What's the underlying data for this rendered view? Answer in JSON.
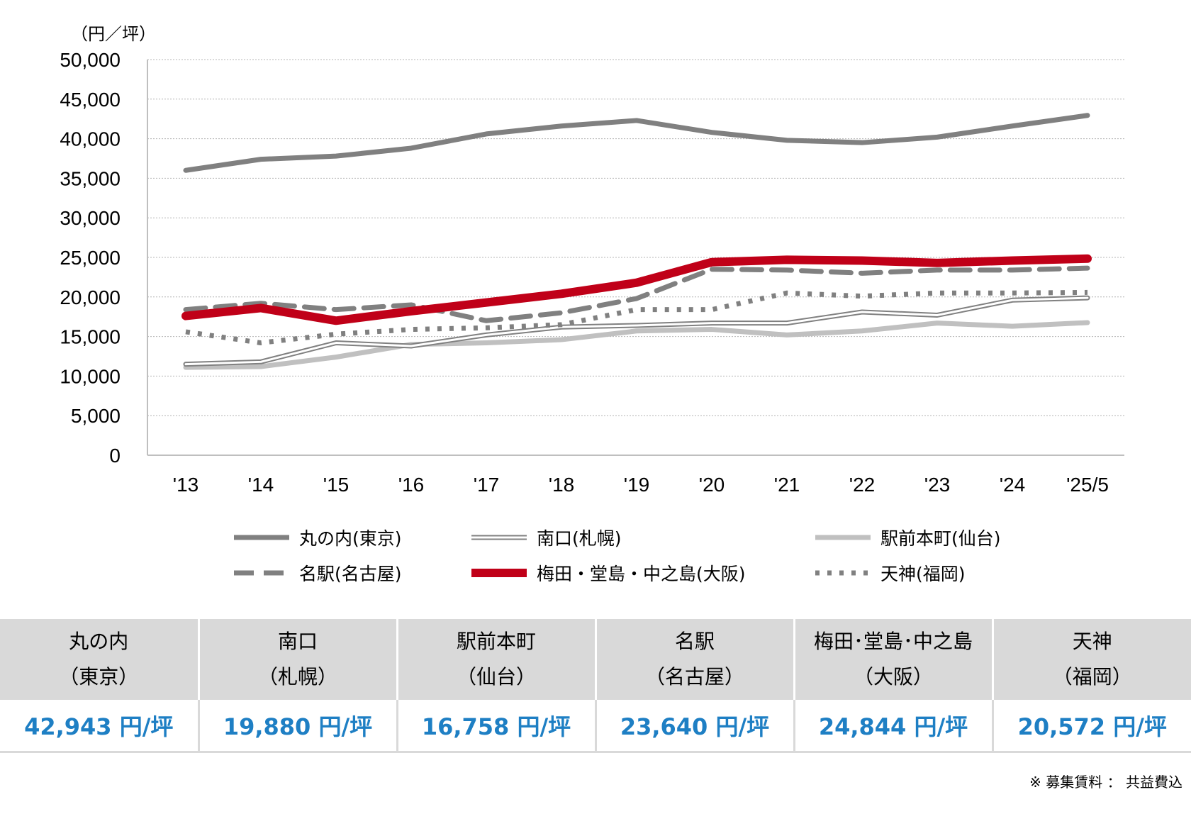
{
  "chart_data": {
    "type": "line",
    "unit_label": "（円／坪）",
    "ylim": [
      0,
      50000
    ],
    "yticks": [
      "0",
      "5,000",
      "10,000",
      "15,000",
      "20,000",
      "25,000",
      "30,000",
      "35,000",
      "40,000",
      "45,000",
      "50,000"
    ],
    "ytick_values": [
      0,
      5000,
      10000,
      15000,
      20000,
      25000,
      30000,
      35000,
      40000,
      45000,
      50000
    ],
    "categories": [
      "'13",
      "'14",
      "'15",
      "'16",
      "'17",
      "'18",
      "'19",
      "'20",
      "'21",
      "'22",
      "'23",
      "'24",
      "'25/5"
    ],
    "grid": true,
    "legend_position": "bottom",
    "series": [
      {
        "name": "丸の内(東京)",
        "style": "thick-solid",
        "color": "#808080",
        "values": [
          36000,
          37400,
          37800,
          38800,
          40600,
          41600,
          42300,
          40800,
          39800,
          39500,
          40200,
          41600,
          42943
        ]
      },
      {
        "name": "南口(札幌)",
        "style": "double",
        "color": "#808080",
        "values": [
          11500,
          11800,
          14200,
          13800,
          15200,
          16200,
          16400,
          16700,
          16700,
          18100,
          17700,
          19600,
          19880
        ]
      },
      {
        "name": "駅前本町(仙台)",
        "style": "thick-solid",
        "color": "#c0c0c0",
        "values": [
          11100,
          11200,
          12400,
          14000,
          14200,
          14600,
          15700,
          15900,
          15200,
          15700,
          16700,
          16300,
          16758
        ]
      },
      {
        "name": "名駅(名古屋)",
        "style": "dashed",
        "color": "#808080",
        "values": [
          18400,
          19200,
          18400,
          19000,
          17000,
          18000,
          19800,
          23500,
          23400,
          23000,
          23400,
          23400,
          23640
        ]
      },
      {
        "name": "梅田・堂島・中之島(大阪)",
        "style": "thick-solid",
        "color": "#c00018",
        "values": [
          17600,
          18600,
          17000,
          18200,
          19300,
          20400,
          21800,
          24400,
          24700,
          24600,
          24300,
          24600,
          24844
        ]
      },
      {
        "name": "天神(福岡)",
        "style": "dotted",
        "color": "#808080",
        "values": [
          15600,
          14200,
          15300,
          15900,
          16100,
          16500,
          18400,
          18400,
          20500,
          20100,
          20500,
          20500,
          20572
        ]
      }
    ]
  },
  "summary_table": [
    {
      "area": "丸の内",
      "city": "（東京）",
      "value": "42,943 円/坪"
    },
    {
      "area": "南口",
      "city": "（札幌）",
      "value": "19,880 円/坪"
    },
    {
      "area": "駅前本町",
      "city": "（仙台）",
      "value": "16,758 円/坪"
    },
    {
      "area": "名駅",
      "city": "（名古屋）",
      "value": "23,640 円/坪"
    },
    {
      "area": "梅田･堂島･中之島",
      "city": "（大阪）",
      "value": "24,844 円/坪"
    },
    {
      "area": "天神",
      "city": "（福岡）",
      "value": "20,572 円/坪"
    }
  ],
  "footnote": "※ 募集賃料 ： 共益費込"
}
